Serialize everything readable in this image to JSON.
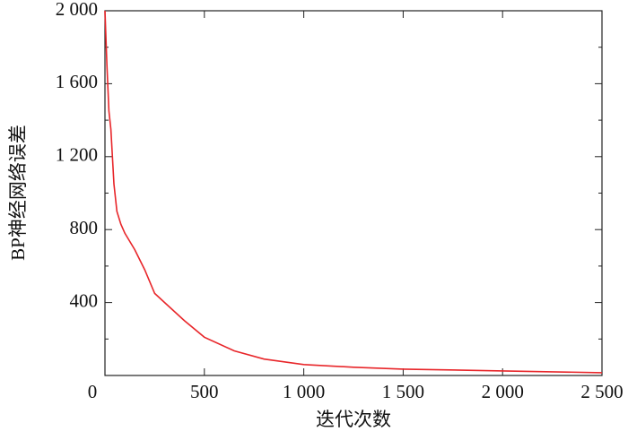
{
  "chart_data": {
    "type": "line",
    "x_label": "迭代次数",
    "y_label": "BP神经网络误差",
    "x": [
      0,
      10,
      20,
      30,
      45,
      60,
      80,
      100,
      150,
      200,
      250,
      300,
      400,
      500,
      650,
      800,
      1000,
      1250,
      1500,
      2000,
      2500
    ],
    "series": [
      {
        "name": "误差",
        "color": "#e8262a",
        "values": [
          2000,
          1700,
          1450,
          1350,
          1050,
          900,
          830,
          780,
          690,
          580,
          450,
          400,
          300,
          210,
          135,
          90,
          60,
          45,
          35,
          25,
          15
        ]
      }
    ],
    "xlim": [
      0,
      2500
    ],
    "ylim": [
      0,
      2000
    ],
    "xticks": [
      0,
      500,
      {
        "value": 1000,
        "label": "1 000"
      },
      {
        "value": 1500,
        "label": "1 500"
      },
      {
        "value": 2000,
        "label": "2 000"
      },
      {
        "value": 2500,
        "label": "2 500"
      }
    ],
    "yticks": [
      400,
      800,
      {
        "value": 1200,
        "label": "1 200"
      },
      {
        "value": 1600,
        "label": "1 600"
      },
      {
        "value": 2000,
        "label": "2 000"
      }
    ],
    "yminorticks": [
      200,
      600,
      1000,
      1400,
      1800
    ],
    "legend": false
  }
}
